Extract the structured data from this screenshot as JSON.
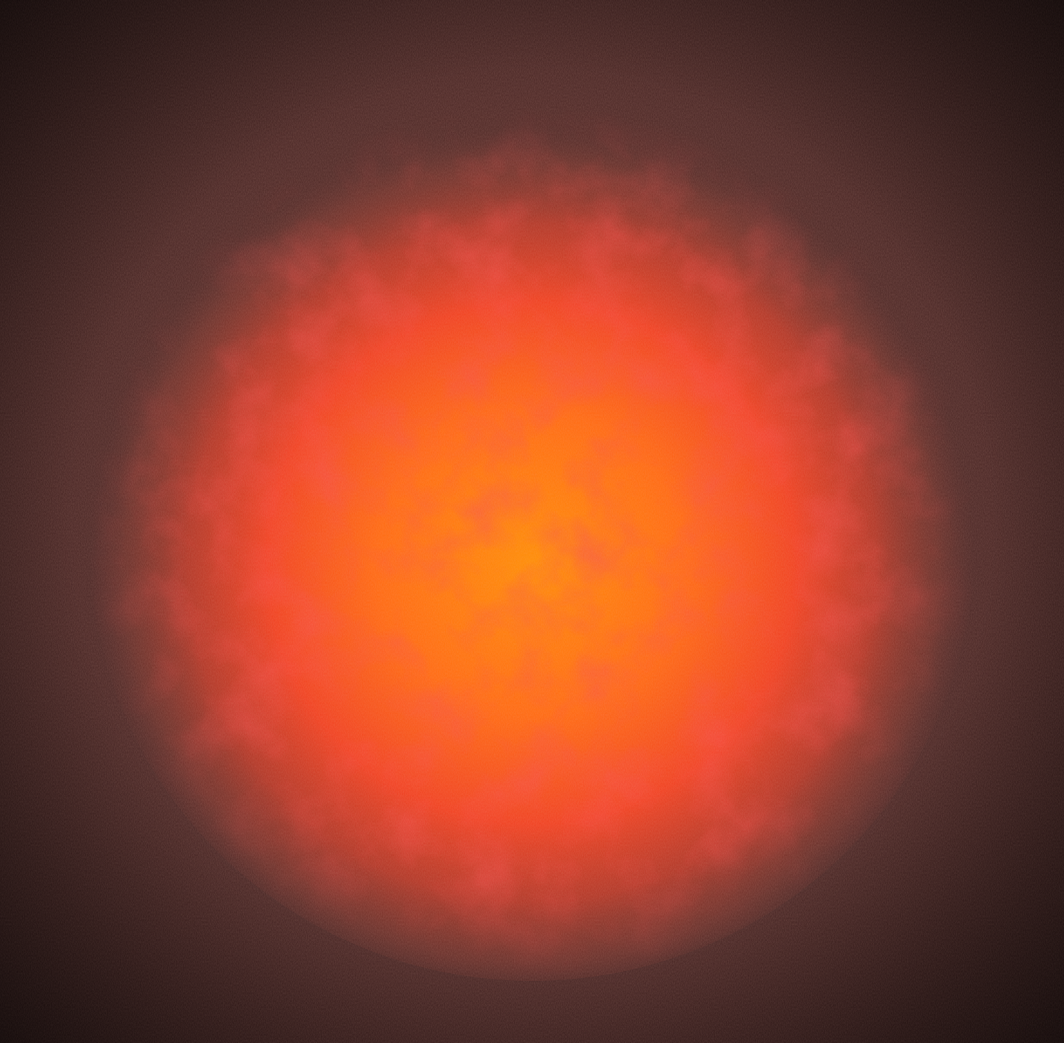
{
  "image": {
    "kind": "abstract-texture",
    "subject": "glowing-orange-orb",
    "colors": {
      "core": "#ff8a00",
      "mid": "#f2401c",
      "rim": "#b43a24",
      "outer": "#5a2e2a",
      "edge": "#2a1614"
    }
  }
}
